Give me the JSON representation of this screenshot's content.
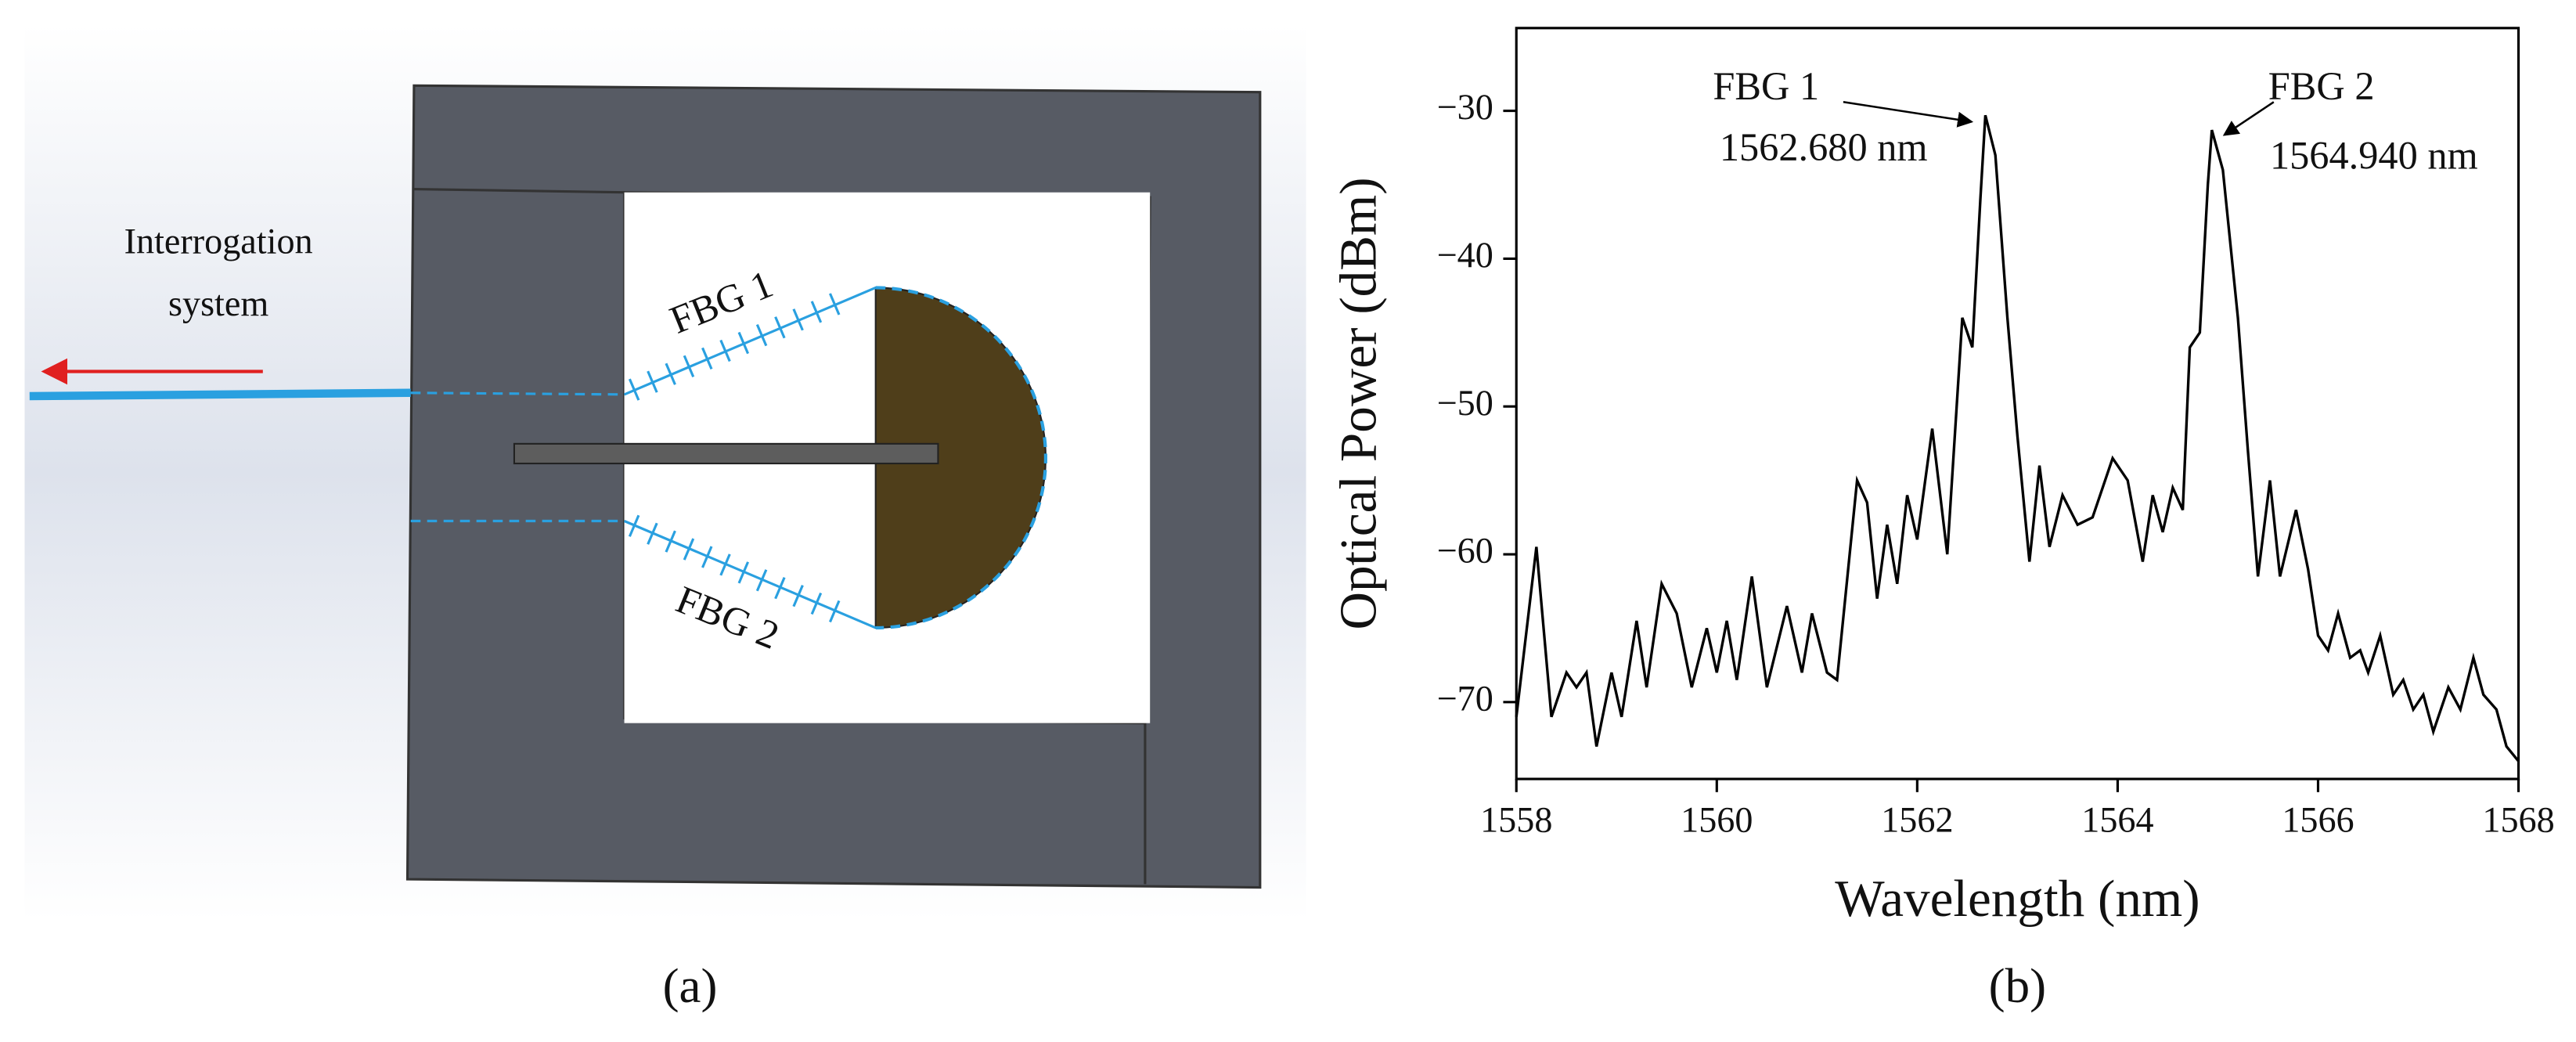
{
  "diagram": {
    "source_label": [
      "Interrogation",
      "system"
    ],
    "grating_labels": [
      "FBG 1",
      "FBG 2"
    ],
    "panel_label": "(a)"
  },
  "chart_data": {
    "type": "line",
    "panel_label": "(b)",
    "x_label": "Wavelength (nm)",
    "y_label": "Optical Power (dBm)",
    "color": "#000000",
    "x": [
      1558.0,
      1558.2,
      1558.35,
      1558.5,
      1558.6,
      1558.7,
      1558.8,
      1558.95,
      1559.05,
      1559.2,
      1559.3,
      1559.45,
      1559.6,
      1559.75,
      1559.9,
      1560.0,
      1560.1,
      1560.2,
      1560.35,
      1560.5,
      1560.7,
      1560.85,
      1560.95,
      1561.1,
      1561.2,
      1561.4,
      1561.5,
      1561.6,
      1561.7,
      1561.8,
      1561.9,
      1562.0,
      1562.15,
      1562.3,
      1562.45,
      1562.55,
      1562.63,
      1562.68,
      1562.78,
      1562.9,
      1563.0,
      1563.12,
      1563.22,
      1563.32,
      1563.45,
      1563.6,
      1563.75,
      1563.95,
      1564.1,
      1564.25,
      1564.35,
      1564.45,
      1564.55,
      1564.65,
      1564.72,
      1564.82,
      1564.9,
      1564.94,
      1565.05,
      1565.2,
      1565.3,
      1565.4,
      1565.52,
      1565.62,
      1565.78,
      1565.9,
      1566.0,
      1566.1,
      1566.2,
      1566.32,
      1566.42,
      1566.5,
      1566.62,
      1566.75,
      1566.85,
      1566.95,
      1567.05,
      1567.15,
      1567.3,
      1567.42,
      1567.55,
      1567.65,
      1567.78,
      1567.88,
      1568.0
    ],
    "values": [
      -71,
      -59.5,
      -71,
      -68,
      -69,
      -68,
      -73,
      -68,
      -71,
      -64.5,
      -69,
      -62,
      -64,
      -69,
      -65,
      -68,
      -64.5,
      -68.5,
      -61.5,
      -69,
      -63.5,
      -68,
      -64,
      -68,
      -68.5,
      -55,
      -56.5,
      -63,
      -58,
      -62,
      -56,
      -59,
      -51.5,
      -60,
      -44,
      -46,
      -36,
      -30.3,
      -33,
      -44,
      -52,
      -60.5,
      -54,
      -59.5,
      -56,
      -58,
      -57.5,
      -53.5,
      -55,
      -60.5,
      -56,
      -58.5,
      -55.5,
      -57,
      -46,
      -45,
      -35,
      -31.3,
      -34,
      -44,
      -53,
      -61.5,
      -55,
      -61.5,
      -57,
      -61,
      -65.5,
      -66.5,
      -64,
      -67,
      -66.5,
      -68,
      -65.5,
      -69.5,
      -68.5,
      -70.5,
      -69.5,
      -72,
      -69,
      -70.5,
      -67,
      -69.5,
      -70.5,
      -73,
      -74
    ],
    "xlim": [
      1558,
      1568
    ],
    "xticks": [
      1558,
      1560,
      1562,
      1564,
      1566,
      1568
    ],
    "ylim": [
      -75.2,
      -24.4
    ],
    "yticks": [
      {
        "value": -70,
        "label": "−70"
      },
      {
        "value": -60,
        "label": "−60"
      },
      {
        "value": -50,
        "label": "−50"
      },
      {
        "value": -40,
        "label": "−40"
      },
      {
        "value": -30,
        "label": "−30"
      }
    ],
    "annotations": [
      [
        "FBG 1",
        "1562.680 nm"
      ],
      [
        "FBG 2",
        "1564.940 nm"
      ]
    ]
  }
}
